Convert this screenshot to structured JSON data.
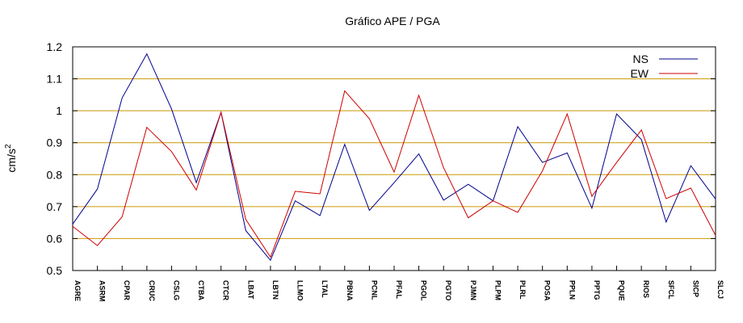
{
  "chart_data": {
    "type": "line",
    "title": "Gráfico  APE / PGA",
    "ylabel_base": "cm/s",
    "ylabel_sup": "2",
    "ylim": [
      0.5,
      1.2
    ],
    "yticks": [
      0.5,
      0.6,
      0.7,
      0.8,
      0.9,
      1.0,
      1.1,
      1.2
    ],
    "ytick_labels": [
      "0.5",
      "0.6",
      "0.7",
      "0.8",
      "0.9",
      "1",
      "1.1",
      "1.2"
    ],
    "grid": "horizontal",
    "grid_color": "#cc9900",
    "legend_position": "top-right",
    "categories": [
      "AGRE",
      "ASRM",
      "CPAR",
      "CRUC",
      "CSLG",
      "CTBA",
      "CTCR",
      "LBAT",
      "LBTN",
      "LLMO",
      "LTAL",
      "PBNA",
      "PCNL",
      "PFAL",
      "PGOL",
      "PGTO",
      "PJMN",
      "PLPM",
      "PLRL",
      "POSA",
      "PPLN",
      "PPTG",
      "PQUE",
      "RIOS",
      "SFCL",
      "SICP",
      "SLCJ"
    ],
    "series": [
      {
        "name": "NS",
        "color": "#00008b",
        "values": [
          0.645,
          0.755,
          1.04,
          1.178,
          1.005,
          0.775,
          0.995,
          0.625,
          0.532,
          0.718,
          0.672,
          0.895,
          0.688,
          0.775,
          0.865,
          0.72,
          0.77,
          0.718,
          0.95,
          0.838,
          0.868,
          0.695,
          0.99,
          0.91,
          0.652,
          0.828,
          0.724
        ]
      },
      {
        "name": "EW",
        "color": "#cc0000",
        "values": [
          0.638,
          0.578,
          0.668,
          0.948,
          0.872,
          0.752,
          0.995,
          0.66,
          0.542,
          0.748,
          0.74,
          1.062,
          0.975,
          0.808,
          1.048,
          0.822,
          0.665,
          0.718,
          0.682,
          0.812,
          0.99,
          0.732,
          0.838,
          0.94,
          0.725,
          0.758,
          0.61
        ]
      }
    ]
  }
}
